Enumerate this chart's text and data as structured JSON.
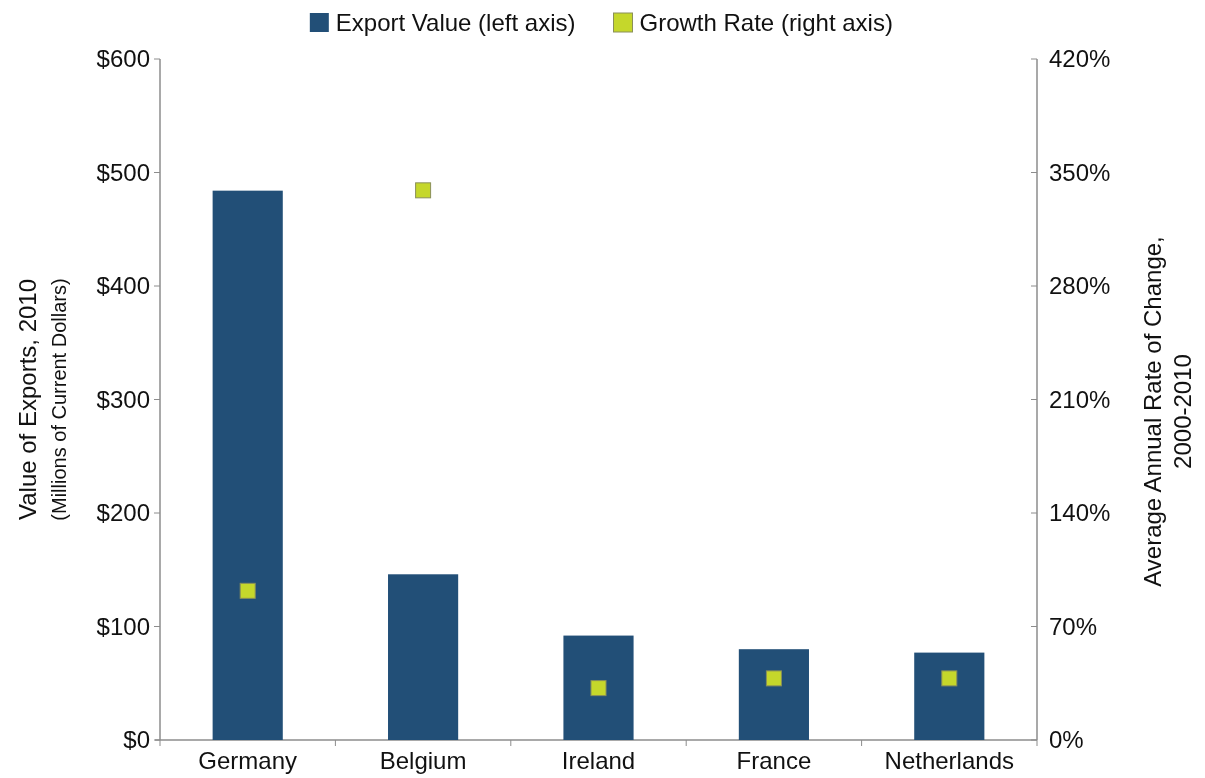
{
  "chart_data": {
    "type": "bar",
    "categories": [
      "Germany",
      "Belgium",
      "Ireland",
      "France",
      "Netherlands"
    ],
    "series": [
      {
        "name": "Export Value (left axis)",
        "color": "#224f77",
        "values": [
          484,
          146,
          92,
          80,
          77
        ]
      },
      {
        "name": "Growth Rate (right axis)",
        "type": "scatter",
        "axis": "y2",
        "color": "#c5d72b",
        "values": [
          92,
          339,
          32,
          38,
          38
        ]
      }
    ],
    "ylabel": "Value of Exports, 2010\n(Millions of Current Dollars)",
    "y2label": "Average Annual Rate of Change,\n2000-2010",
    "ylim": [
      0,
      600
    ],
    "yticks": [
      {
        "value": 0,
        "label": "$0"
      },
      {
        "value": 100,
        "label": "$100"
      },
      {
        "value": 200,
        "label": "$200"
      },
      {
        "value": 300,
        "label": "$300"
      },
      {
        "value": 400,
        "label": "$400"
      },
      {
        "value": 500,
        "label": "$500"
      },
      {
        "value": 600,
        "label": "$600"
      }
    ],
    "y2lim": [
      0,
      420
    ],
    "y2ticks": [
      {
        "value": 0,
        "label": "0%"
      },
      {
        "value": 70,
        "label": "70%"
      },
      {
        "value": 140,
        "label": "140%"
      },
      {
        "value": 210,
        "label": "210%"
      },
      {
        "value": 280,
        "label": "280%"
      },
      {
        "value": 350,
        "label": "350%"
      },
      {
        "value": 420,
        "label": "420%"
      }
    ],
    "legend": "top",
    "marker": "square"
  }
}
